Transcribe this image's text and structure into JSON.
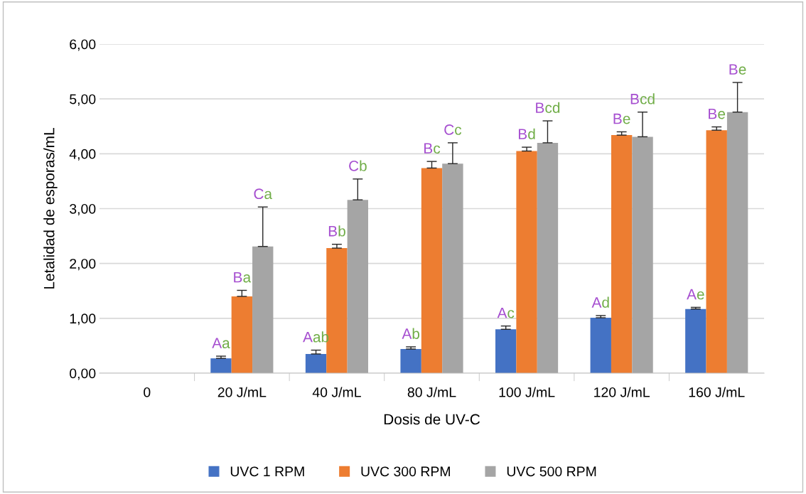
{
  "chart_data": {
    "type": "bar",
    "xlabel": "Dosis de UV-C",
    "ylabel": "Letalidad de esporas/mL",
    "categories": [
      "0",
      "20 J/mL",
      "40 J/mL",
      "80 J/mL",
      "100 J/mL",
      "120 J/mL",
      "160 J/mL"
    ],
    "series": [
      {
        "name": "UVC 1 RPM",
        "color": "#4472c4",
        "values": [
          0,
          0.27,
          0.35,
          0.44,
          0.8,
          1.01,
          1.17
        ],
        "errors": [
          null,
          [
            0.27,
            0.31
          ],
          [
            0.35,
            0.42
          ],
          [
            0.44,
            0.48
          ],
          [
            0.8,
            0.86
          ],
          [
            1.01,
            1.05
          ],
          [
            1.17,
            1.2
          ]
        ],
        "value_labels": [
          null,
          "Aa",
          "Aab",
          "Ab",
          "Ac",
          "Ad",
          "Ae"
        ]
      },
      {
        "name": "UVC 300 RPM",
        "color": "#ed7d31",
        "values": [
          0,
          1.4,
          2.28,
          3.74,
          4.05,
          4.34,
          4.43
        ],
        "errors": [
          null,
          [
            1.4,
            1.51
          ],
          [
            2.28,
            2.35
          ],
          [
            3.74,
            3.86
          ],
          [
            4.05,
            4.12
          ],
          [
            4.34,
            4.4
          ],
          [
            4.43,
            4.49
          ]
        ],
        "value_labels": [
          null,
          "Ba",
          "Bb",
          "Bc",
          "Bd",
          "Be",
          "Be"
        ]
      },
      {
        "name": "UVC 500 RPM",
        "color": "#a5a5a5",
        "values": [
          0,
          2.31,
          3.16,
          3.82,
          4.2,
          4.31,
          4.76
        ],
        "errors": [
          null,
          [
            2.31,
            3.03
          ],
          [
            3.16,
            3.54
          ],
          [
            3.82,
            4.2
          ],
          [
            4.2,
            4.6
          ],
          [
            4.31,
            4.76
          ],
          [
            4.76,
            5.3
          ]
        ],
        "value_labels": [
          null,
          "Ca",
          "Cb",
          "Cc",
          "Bcd",
          "Bcd",
          "Be"
        ]
      }
    ],
    "ylim": [
      0,
      6
    ],
    "yticks": [
      {
        "value": 0,
        "label": "0,00"
      },
      {
        "value": 1,
        "label": "1,00"
      },
      {
        "value": 2,
        "label": "2,00"
      },
      {
        "value": 3,
        "label": "3,00"
      },
      {
        "value": 4,
        "label": "4,00"
      },
      {
        "value": 5,
        "label": "5,00"
      },
      {
        "value": 6,
        "label": "6,00"
      }
    ],
    "grid": "y",
    "legend": "bottom"
  }
}
